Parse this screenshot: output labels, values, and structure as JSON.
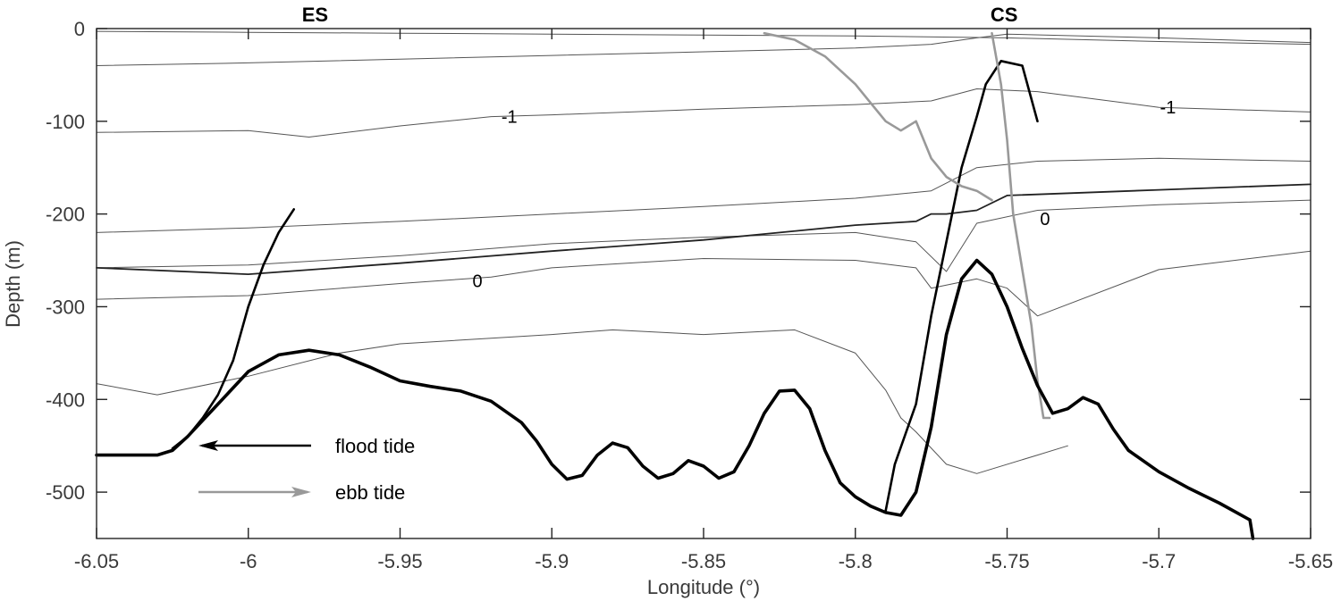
{
  "chart_data": {
    "type": "line",
    "xlabel": "Longitude (°)",
    "ylabel": "Depth (m)",
    "xlim": [
      -6.05,
      -5.65
    ],
    "ylim": [
      -550,
      0
    ],
    "x_ticks": [
      "-6.05",
      "-6",
      "-5.95",
      "-5.9",
      "-5.85",
      "-5.8",
      "-5.75",
      "-5.7",
      "-5.65"
    ],
    "y_ticks": [
      "0",
      "-100",
      "-200",
      "-300",
      "-400",
      "-500"
    ],
    "x_tick_values": [
      -6.05,
      -6.0,
      -5.95,
      -5.9,
      -5.85,
      -5.8,
      -5.75,
      -5.7,
      -5.65
    ],
    "y_tick_values": [
      0,
      -100,
      -200,
      -300,
      -400,
      -500
    ],
    "grid": false,
    "annotations": [
      {
        "text": "ES",
        "x": -5.978,
        "y": 6,
        "kind": "site"
      },
      {
        "text": "CS",
        "x": -5.751,
        "y": 6,
        "kind": "site"
      },
      {
        "text": "-1",
        "x": -5.914,
        "y": -95,
        "kind": "contour"
      },
      {
        "text": "-1",
        "x": -5.697,
        "y": -85,
        "kind": "contour"
      },
      {
        "text": "0",
        "x": -5.9245,
        "y": -272,
        "kind": "contour"
      },
      {
        "text": "0",
        "x": -5.7375,
        "y": -205,
        "kind": "contour"
      }
    ],
    "legend": [
      {
        "label": "flood tide",
        "color": "#000000"
      },
      {
        "label": "ebb tide",
        "color": "#999999"
      }
    ],
    "legend_placement": "bottom-left",
    "series": [
      {
        "role": "bathymetry",
        "color": "#000000",
        "width": 3.6,
        "x": [
          -6.05,
          -6.03,
          -6.025,
          -6.02,
          -6.01,
          -6.0,
          -5.99,
          -5.98,
          -5.97,
          -5.96,
          -5.95,
          -5.94,
          -5.93,
          -5.92,
          -5.91,
          -5.905,
          -5.9,
          -5.895,
          -5.89,
          -5.885,
          -5.88,
          -5.875,
          -5.87,
          -5.865,
          -5.86,
          -5.855,
          -5.85,
          -5.845,
          -5.84,
          -5.835,
          -5.83,
          -5.825,
          -5.82,
          -5.815,
          -5.81,
          -5.805,
          -5.8,
          -5.795,
          -5.79,
          -5.785,
          -5.78,
          -5.775,
          -5.77,
          -5.765,
          -5.76,
          -5.755,
          -5.75,
          -5.745,
          -5.74,
          -5.735,
          -5.73,
          -5.725,
          -5.72,
          -5.715,
          -5.71,
          -5.7,
          -5.69,
          -5.68,
          -5.67,
          -5.669
        ],
        "y": [
          -460,
          -460,
          -455,
          -440,
          -405,
          -370,
          -352,
          -347,
          -352,
          -365,
          -380,
          -386,
          -391,
          -402,
          -425,
          -445,
          -470,
          -486,
          -482,
          -460,
          -447,
          -452,
          -472,
          -485,
          -480,
          -466,
          -472,
          -485,
          -478,
          -450,
          -415,
          -391,
          -390,
          -410,
          -455,
          -490,
          -505,
          -515,
          -522,
          -525,
          -500,
          -430,
          -330,
          -270,
          -250,
          -265,
          -300,
          -345,
          -385,
          -415,
          -410,
          -398,
          -405,
          -432,
          -455,
          -478,
          -496,
          -512,
          -530,
          -550
        ]
      },
      {
        "role": "isopycnal",
        "color": "#555555",
        "width": 1.0,
        "x": [
          -6.05,
          -6.0,
          -5.95,
          -5.9,
          -5.85,
          -5.8,
          -5.75,
          -5.7,
          -5.65
        ],
        "y": [
          -3,
          -4,
          -5,
          -6,
          -7,
          -8,
          -10,
          -14,
          -17
        ]
      },
      {
        "role": "isopycnal",
        "color": "#555555",
        "width": 1.0,
        "x": [
          -6.05,
          -6.0,
          -5.95,
          -5.9,
          -5.85,
          -5.8,
          -5.775,
          -5.76,
          -5.75,
          -5.7,
          -5.65
        ],
        "y": [
          -40,
          -37,
          -33,
          -29,
          -25,
          -21,
          -17,
          -10,
          -6,
          -10,
          -15
        ]
      },
      {
        "role": "isopycnal",
        "color": "#555555",
        "width": 1.0,
        "x": [
          -6.05,
          -6.0,
          -5.98,
          -5.95,
          -5.92,
          -5.9,
          -5.85,
          -5.8,
          -5.775,
          -5.76,
          -5.74,
          -5.7,
          -5.65
        ],
        "y": [
          -112,
          -110,
          -117,
          -105,
          -95,
          -93,
          -87,
          -82,
          -78,
          -65,
          -68,
          -85,
          -90
        ]
      },
      {
        "role": "isopycnal",
        "color": "#555555",
        "width": 1.0,
        "x": [
          -6.05,
          -6.0,
          -5.95,
          -5.9,
          -5.85,
          -5.8,
          -5.775,
          -5.76,
          -5.74,
          -5.7,
          -5.65
        ],
        "y": [
          -220,
          -215,
          -208,
          -200,
          -192,
          -183,
          -175,
          -150,
          -143,
          -140,
          -143
        ]
      },
      {
        "role": "isopycnal",
        "color": "#555555",
        "width": 1.0,
        "x": [
          -6.05,
          -6.0,
          -5.95,
          -5.9,
          -5.85,
          -5.8,
          -5.78,
          -5.77,
          -5.76,
          -5.74,
          -5.7,
          -5.65
        ],
        "y": [
          -258,
          -255,
          -245,
          -232,
          -225,
          -220,
          -230,
          -262,
          -210,
          -196,
          -190,
          -185
        ]
      },
      {
        "role": "isopycnal",
        "color": "#555555",
        "width": 1.0,
        "x": [
          -6.05,
          -6.0,
          -5.95,
          -5.92,
          -5.9,
          -5.85,
          -5.8,
          -5.78,
          -5.775,
          -5.76,
          -5.75,
          -5.74,
          -5.7,
          -5.65
        ],
        "y": [
          -292,
          -288,
          -275,
          -268,
          -258,
          -248,
          -250,
          -258,
          -280,
          -270,
          -280,
          -310,
          -260,
          -240
        ]
      },
      {
        "role": "isopycnal",
        "color": "#555555",
        "width": 1.0,
        "x": [
          -6.05,
          -6.03,
          -6.0,
          -5.97,
          -5.95,
          -5.9,
          -5.88,
          -5.85,
          -5.82,
          -5.8,
          -5.79,
          -5.785,
          -5.78,
          -5.77,
          -5.76,
          -5.74,
          -5.73
        ],
        "y": [
          -383,
          -395,
          -375,
          -350,
          -340,
          -330,
          -325,
          -330,
          -325,
          -350,
          -390,
          -420,
          -435,
          -470,
          -480,
          -460,
          -450
        ]
      },
      {
        "role": "density-zero-line",
        "color": "#222222",
        "width": 1.8,
        "x": [
          -6.05,
          -6.0,
          -5.95,
          -5.9,
          -5.85,
          -5.8,
          -5.78,
          -5.775,
          -5.77,
          -5.76,
          -5.75,
          -5.7,
          -5.65
        ],
        "y": [
          -258,
          -265,
          -253,
          -240,
          -228,
          -212,
          -208,
          -200,
          -200,
          -196,
          -180,
          -174,
          -168
        ]
      },
      {
        "role": "flood-front",
        "color": "#000000",
        "width": 2.6,
        "x": [
          -6.025,
          -6.02,
          -6.015,
          -6.01,
          -6.005,
          -6.0,
          -5.995,
          -5.99,
          -5.985
        ],
        "y": [
          -453,
          -440,
          -420,
          -395,
          -358,
          -300,
          -255,
          -220,
          -195
        ]
      },
      {
        "role": "flood-front",
        "color": "#000000",
        "width": 2.6,
        "x": [
          -5.79,
          -5.787,
          -5.78,
          -5.775,
          -5.77,
          -5.765,
          -5.76,
          -5.757,
          -5.752,
          -5.745,
          -5.74
        ],
        "y": [
          -520,
          -470,
          -405,
          -310,
          -230,
          -150,
          -95,
          -60,
          -35,
          -40,
          -100
        ]
      },
      {
        "role": "ebb-front",
        "color": "#999999",
        "width": 2.6,
        "x": [
          -5.83,
          -5.82,
          -5.81,
          -5.8,
          -5.795,
          -5.79,
          -5.785,
          -5.78,
          -5.775,
          -5.77,
          -5.765,
          -5.76,
          -5.755
        ],
        "y": [
          -5,
          -12,
          -30,
          -60,
          -80,
          -100,
          -110,
          -100,
          -140,
          -160,
          -170,
          -175,
          -185
        ]
      },
      {
        "role": "ebb-front",
        "color": "#999999",
        "width": 2.6,
        "x": [
          -5.755,
          -5.752,
          -5.75,
          -5.748,
          -5.745,
          -5.742,
          -5.74,
          -5.738,
          -5.736
        ],
        "y": [
          -5,
          -60,
          -120,
          -200,
          -260,
          -320,
          -380,
          -420,
          -420
        ]
      }
    ]
  }
}
